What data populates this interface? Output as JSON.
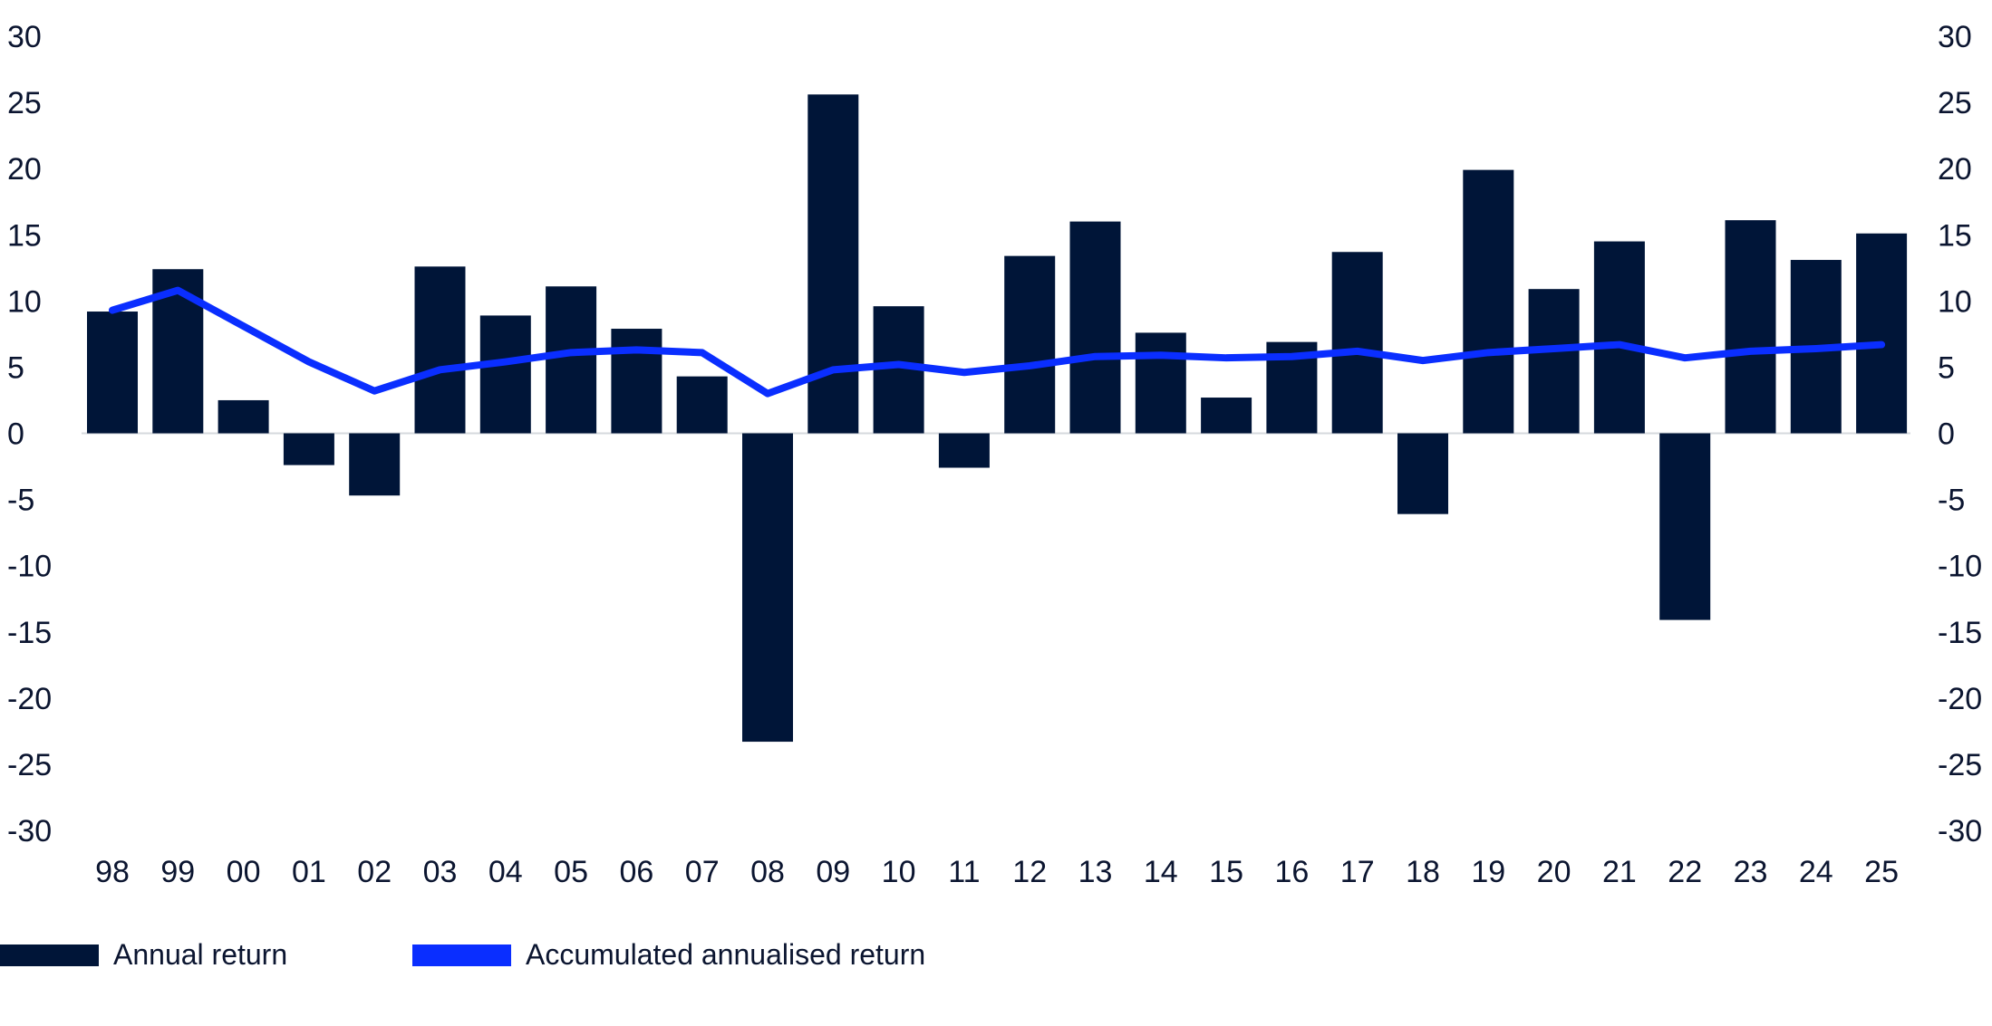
{
  "chart_data": {
    "type": "bar",
    "title": "",
    "xlabel": "",
    "ylabel": "",
    "ylim": [
      -30,
      30
    ],
    "yticks": [
      "30",
      "25",
      "20",
      "15",
      "10",
      "5",
      "0",
      "-5",
      "-10",
      "-15",
      "-20",
      "-25",
      "-30"
    ],
    "ytick_values": [
      30,
      25,
      20,
      15,
      10,
      5,
      0,
      -5,
      -10,
      -15,
      -20,
      -25,
      -30
    ],
    "categories": [
      "98",
      "99",
      "00",
      "01",
      "02",
      "03",
      "04",
      "05",
      "06",
      "07",
      "08",
      "09",
      "10",
      "11",
      "12",
      "13",
      "14",
      "15",
      "16",
      "17",
      "18",
      "19",
      "20",
      "21",
      "22",
      "23",
      "24",
      "25"
    ],
    "series": [
      {
        "name": "Annual return",
        "type": "bar",
        "color": "#001538",
        "values": [
          9.2,
          12.4,
          2.5,
          -2.4,
          -4.7,
          12.6,
          8.9,
          11.1,
          7.9,
          4.3,
          -23.3,
          25.6,
          9.6,
          -2.6,
          13.4,
          16.0,
          7.6,
          2.7,
          6.9,
          13.7,
          -6.1,
          19.9,
          10.9,
          14.5,
          -14.1,
          16.1,
          13.1,
          15.1
        ]
      },
      {
        "name": "Accumulated annualised return",
        "type": "line",
        "color": "#0a2eff",
        "values": [
          9.3,
          10.8,
          8.1,
          5.4,
          3.2,
          4.8,
          5.4,
          6.1,
          6.3,
          6.1,
          3.0,
          4.8,
          5.2,
          4.6,
          5.1,
          5.8,
          5.9,
          5.7,
          5.8,
          6.2,
          5.5,
          6.1,
          6.4,
          6.7,
          5.7,
          6.2,
          6.4,
          6.7
        ]
      }
    ],
    "legend": {
      "position": "bottom-left",
      "entries": [
        "Annual return",
        "Accumulated annualised return"
      ]
    }
  }
}
